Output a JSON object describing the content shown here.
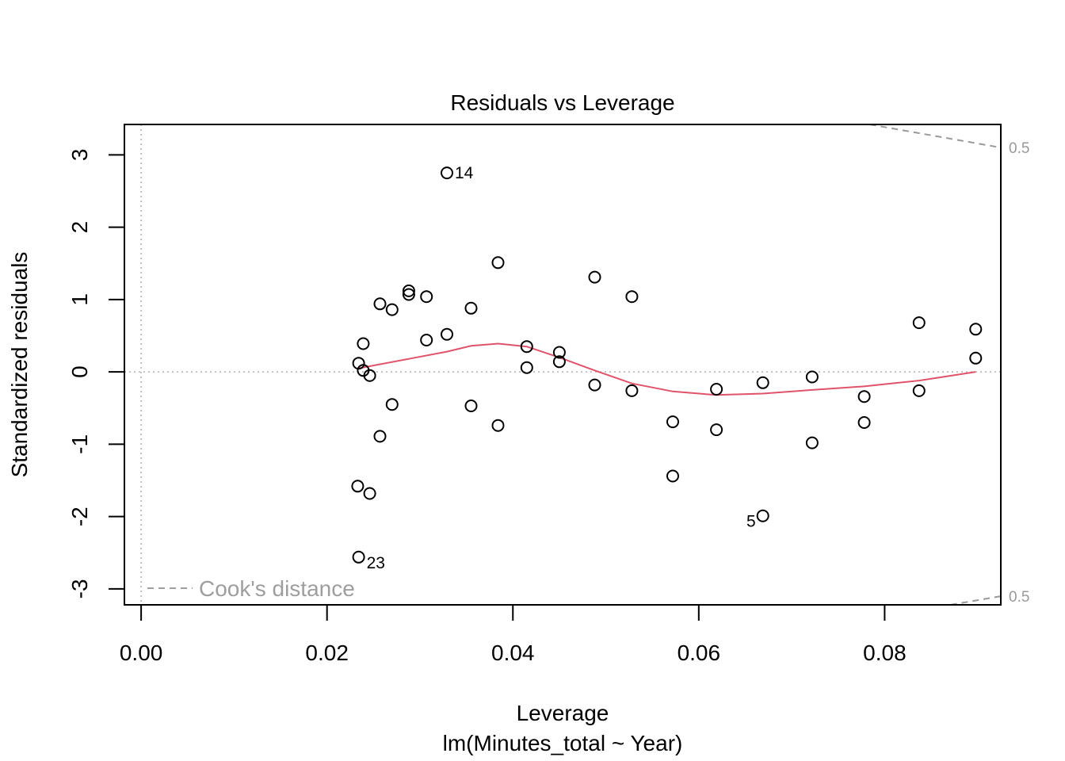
{
  "chart_data": {
    "type": "scatter",
    "title": "Residuals vs Leverage",
    "xlabel": "Leverage",
    "subtitle": "lm(Minutes_total ~ Year)",
    "ylabel": "Standardized residuals",
    "xlim": [
      -0.0018,
      0.0925
    ],
    "ylim": [
      -3.22,
      3.42
    ],
    "x_ticks": [
      {
        "value": 0.0,
        "label": "0.00"
      },
      {
        "value": 0.02,
        "label": "0.02"
      },
      {
        "value": 0.04,
        "label": "0.04"
      },
      {
        "value": 0.06,
        "label": "0.06"
      },
      {
        "value": 0.08,
        "label": "0.08"
      }
    ],
    "y_ticks": [
      {
        "value": -3,
        "label": "-3"
      },
      {
        "value": -2,
        "label": "-2"
      },
      {
        "value": -1,
        "label": "-1"
      },
      {
        "value": 0,
        "label": "0"
      },
      {
        "value": 1,
        "label": "1"
      },
      {
        "value": 2,
        "label": "2"
      },
      {
        "value": 3,
        "label": "3"
      }
    ],
    "reference_lines": {
      "x": 0,
      "y": 0,
      "style": "dotted"
    },
    "points": [
      {
        "x": 0.0329,
        "y": 2.75,
        "label": "14"
      },
      {
        "x": 0.0384,
        "y": 1.51
      },
      {
        "x": 0.0288,
        "y": 1.12
      },
      {
        "x": 0.0288,
        "y": 1.07
      },
      {
        "x": 0.0307,
        "y": 1.04
      },
      {
        "x": 0.0257,
        "y": 0.94
      },
      {
        "x": 0.027,
        "y": 0.86
      },
      {
        "x": 0.0355,
        "y": 0.88
      },
      {
        "x": 0.0329,
        "y": 0.52
      },
      {
        "x": 0.0307,
        "y": 0.44
      },
      {
        "x": 0.0239,
        "y": 0.39
      },
      {
        "x": 0.0234,
        "y": 0.12
      },
      {
        "x": 0.0239,
        "y": 0.02
      },
      {
        "x": 0.0246,
        "y": -0.05
      },
      {
        "x": 0.027,
        "y": -0.45
      },
      {
        "x": 0.0257,
        "y": -0.89
      },
      {
        "x": 0.0355,
        "y": -0.47
      },
      {
        "x": 0.0384,
        "y": -0.74
      },
      {
        "x": 0.0233,
        "y": -1.58
      },
      {
        "x": 0.0246,
        "y": -1.68
      },
      {
        "x": 0.0234,
        "y": -2.56,
        "label": "23"
      },
      {
        "x": 0.0415,
        "y": 0.35
      },
      {
        "x": 0.0415,
        "y": 0.06
      },
      {
        "x": 0.045,
        "y": 0.27
      },
      {
        "x": 0.045,
        "y": 0.14
      },
      {
        "x": 0.0488,
        "y": 1.31
      },
      {
        "x": 0.0488,
        "y": -0.18
      },
      {
        "x": 0.0528,
        "y": 1.04
      },
      {
        "x": 0.0528,
        "y": -0.26
      },
      {
        "x": 0.0572,
        "y": -0.69
      },
      {
        "x": 0.0572,
        "y": -1.44
      },
      {
        "x": 0.0619,
        "y": -0.24
      },
      {
        "x": 0.0619,
        "y": -0.8
      },
      {
        "x": 0.0669,
        "y": -0.15
      },
      {
        "x": 0.0669,
        "y": -1.99,
        "label": "5"
      },
      {
        "x": 0.0722,
        "y": -0.07
      },
      {
        "x": 0.0722,
        "y": -0.98
      },
      {
        "x": 0.0778,
        "y": -0.34
      },
      {
        "x": 0.0778,
        "y": -0.7
      },
      {
        "x": 0.0837,
        "y": 0.68
      },
      {
        "x": 0.0837,
        "y": -0.26
      },
      {
        "x": 0.0898,
        "y": 0.59
      },
      {
        "x": 0.0898,
        "y": 0.19
      }
    ],
    "smoother": {
      "color": "#DF536B",
      "x": [
        0.0234,
        0.0288,
        0.0329,
        0.0355,
        0.0384,
        0.0415,
        0.045,
        0.0488,
        0.0528,
        0.0572,
        0.0619,
        0.0669,
        0.0722,
        0.0778,
        0.0837,
        0.0898
      ],
      "y": [
        0.05,
        0.18,
        0.28,
        0.36,
        0.39,
        0.35,
        0.2,
        0.02,
        -0.16,
        -0.27,
        -0.32,
        -0.3,
        -0.25,
        -0.2,
        -0.12,
        0.0
      ]
    },
    "cooks_distance": {
      "label": "0.5",
      "color": "#999999",
      "upper": {
        "x": [
          0.0784,
          0.0925
        ],
        "y": [
          3.42,
          3.1
        ]
      },
      "lower": {
        "x": [
          0.0871,
          0.0925
        ],
        "y": [
          -3.22,
          -3.1
        ]
      }
    },
    "legend": {
      "text": "Cook's distance",
      "position": "bottom-left"
    }
  }
}
